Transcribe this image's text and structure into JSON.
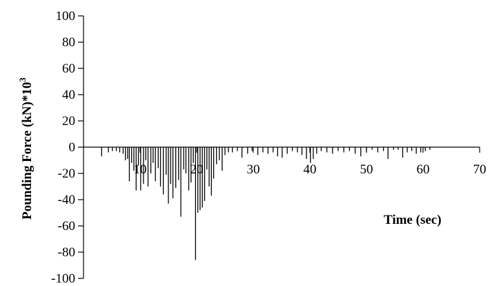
{
  "chart_data": {
    "type": "bar",
    "title": "",
    "xlabel": "Time (sec)",
    "ylabel": "Pounding Force (kN)*10",
    "ylabel_sup": "3",
    "xlim": [
      0,
      70
    ],
    "ylim": [
      -100,
      100
    ],
    "x_ticks": [
      10,
      20,
      30,
      40,
      50,
      60,
      70
    ],
    "x_tick_labels": [
      "10",
      "20",
      "30",
      "40",
      "50",
      "60",
      "70"
    ],
    "y_ticks": [
      100,
      80,
      60,
      40,
      20,
      0,
      -20,
      -40,
      -60,
      -80,
      -100
    ],
    "y_tick_labels": [
      "100",
      "80",
      "60",
      "40",
      "20",
      "0",
      "-20",
      "-40",
      "-60",
      "-80",
      "-100"
    ],
    "grid": false,
    "legend": "none",
    "series": [
      {
        "x": [
          3.2,
          4.4,
          5.1,
          5.8,
          6.4,
          7.0,
          7.4,
          7.8,
          8.1,
          8.5,
          8.9,
          9.3,
          9.7,
          10.1,
          10.6,
          11.0,
          11.4,
          11.9,
          12.3,
          12.7,
          13.2,
          13.6,
          14.1,
          14.6,
          15.0,
          15.4,
          15.8,
          16.3,
          16.8,
          17.2,
          17.7,
          18.1,
          18.6,
          19.0,
          19.4,
          19.8,
          20.2,
          20.6,
          21.0,
          21.4,
          21.8,
          22.2,
          22.6,
          23.0,
          23.5,
          24.0,
          24.5,
          25.0,
          25.6,
          26.3,
          27.2,
          28.0,
          29.0,
          29.8,
          30.8,
          31.7,
          32.6,
          33.5,
          34.3,
          35.1,
          36.0,
          36.9,
          37.8,
          38.6,
          39.4,
          40.1,
          40.6,
          41.2,
          42.0,
          43.0,
          44.0,
          45.0,
          46.0,
          47.0,
          48.0,
          49.0,
          50.0,
          51.0,
          52.0,
          53.0,
          53.8,
          54.8,
          55.6,
          56.4,
          57.2,
          58.0,
          58.8,
          59.6,
          60.4,
          61.2
        ],
        "values": [
          -7,
          -4,
          -3,
          -3,
          -4,
          -5,
          -10,
          -9,
          -26,
          -12,
          -18,
          -33,
          -14,
          -33,
          -28,
          -10,
          -30,
          -20,
          -12,
          -26,
          -16,
          -30,
          -36,
          -21,
          -43,
          -28,
          -39,
          -31,
          -25,
          -53,
          -17,
          -20,
          -33,
          -27,
          -12,
          -86,
          -50,
          -48,
          -46,
          -41,
          -17,
          -30,
          -37,
          -24,
          -13,
          -10,
          -18,
          -6,
          -4,
          -4,
          -3,
          -8,
          -5,
          -3,
          -6,
          -4,
          -5,
          -4,
          -7,
          -8,
          -5,
          -3,
          -4,
          -6,
          -9,
          -12,
          -9,
          -5,
          -3,
          -4,
          -5,
          -3,
          -4,
          -3,
          -5,
          -7,
          -3,
          -2,
          -4,
          -3,
          -9,
          -2,
          -2,
          -8,
          -4,
          -3,
          -5,
          -4,
          -3,
          -2
        ]
      }
    ]
  }
}
